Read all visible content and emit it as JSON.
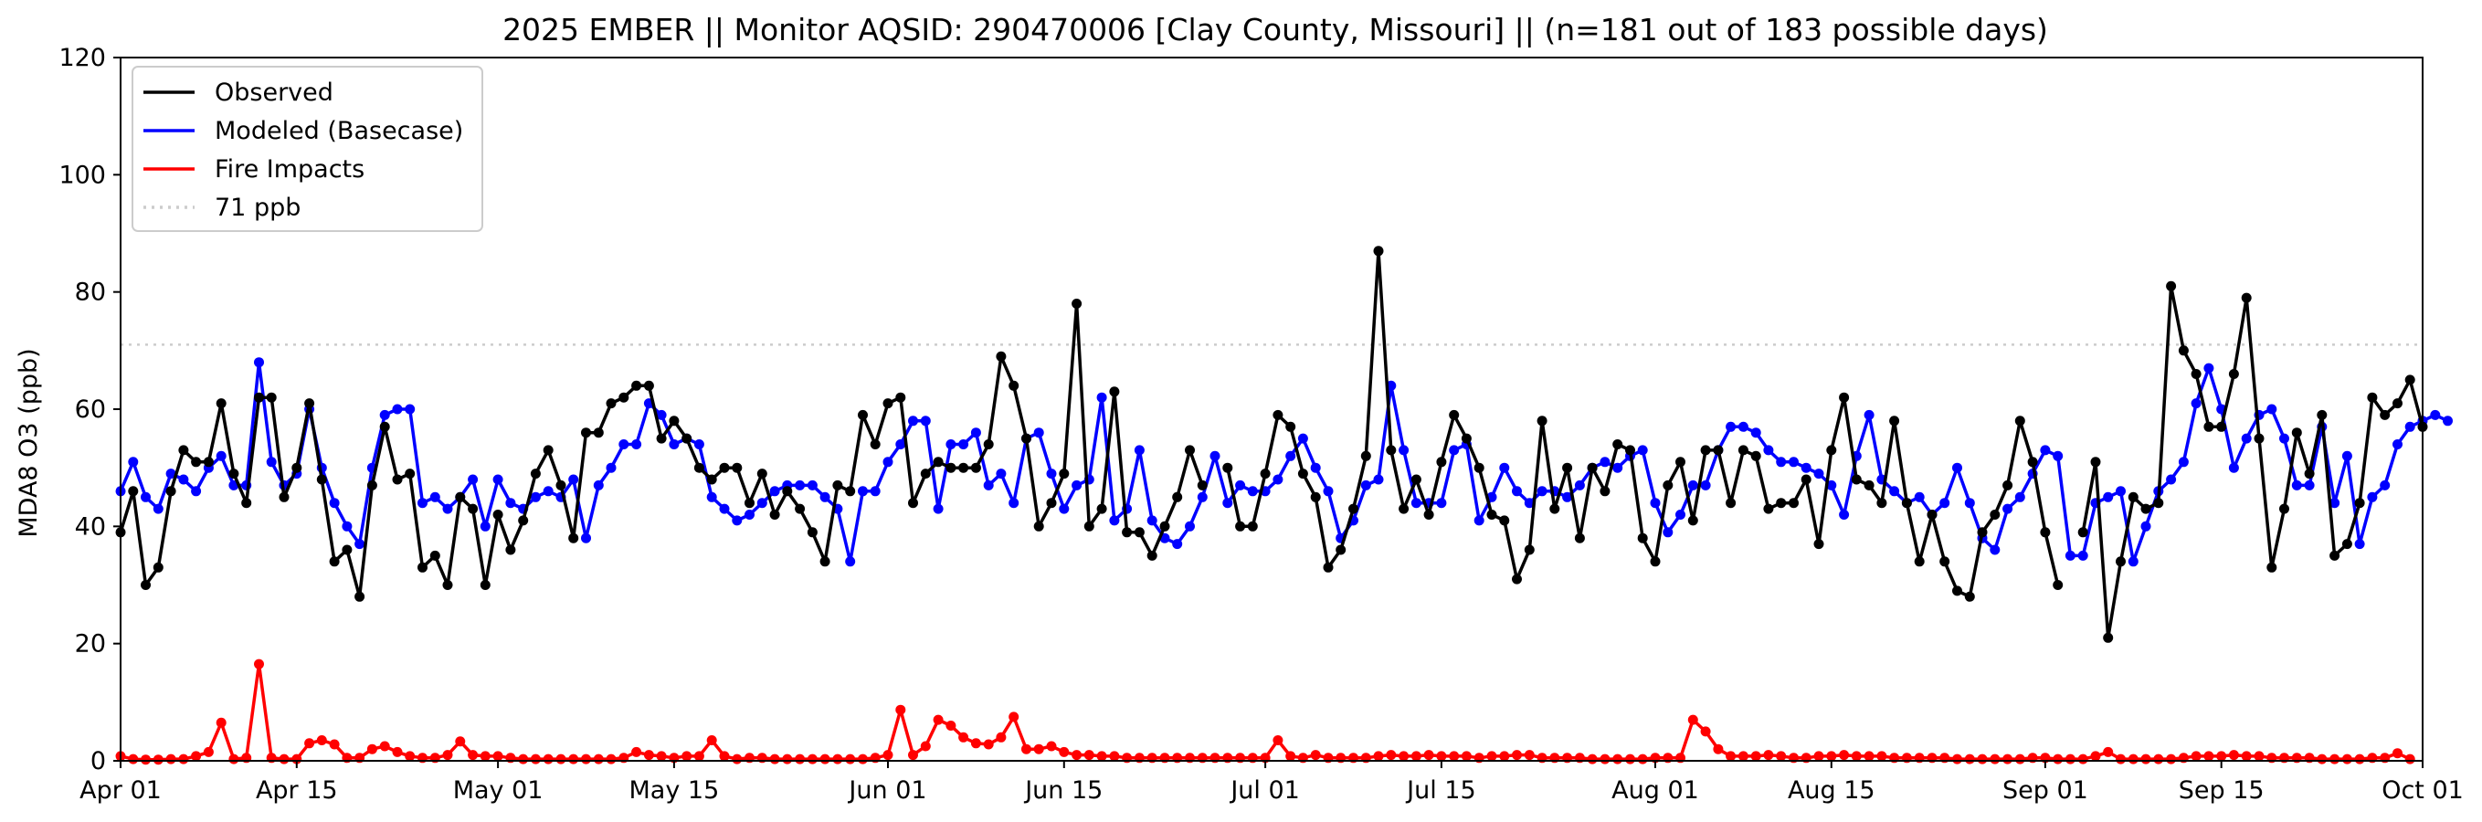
{
  "chart_data": {
    "type": "line",
    "title": "2025 EMBER || Monitor AQSID: 290470006 [Clay County, Missouri] || (n=181 out of 183 possible days)",
    "xlabel": "",
    "ylabel": "MDA8 O3 (ppb)",
    "x_start": "2025-04-01",
    "xlim": [
      "2025-04-01",
      "2025-10-01"
    ],
    "ylim": [
      0,
      120
    ],
    "y_ticks": [
      0,
      20,
      40,
      60,
      80,
      100,
      120
    ],
    "x_ticks": [
      {
        "date": "2025-04-01",
        "label": "Apr 01"
      },
      {
        "date": "2025-04-15",
        "label": "Apr 15"
      },
      {
        "date": "2025-05-01",
        "label": "May 01"
      },
      {
        "date": "2025-05-15",
        "label": "May 15"
      },
      {
        "date": "2025-06-01",
        "label": "Jun 01"
      },
      {
        "date": "2025-06-15",
        "label": "Jun 15"
      },
      {
        "date": "2025-07-01",
        "label": "Jul 01"
      },
      {
        "date": "2025-07-15",
        "label": "Jul 15"
      },
      {
        "date": "2025-08-01",
        "label": "Aug 01"
      },
      {
        "date": "2025-08-15",
        "label": "Aug 15"
      },
      {
        "date": "2025-09-01",
        "label": "Sep 01"
      },
      {
        "date": "2025-09-15",
        "label": "Sep 15"
      },
      {
        "date": "2025-10-01",
        "label": "Oct 01"
      }
    ],
    "grid": false,
    "legend_position": "upper-left",
    "threshold": {
      "value": 71,
      "label": "71 ppb",
      "color": "#cccccc"
    },
    "series": [
      {
        "name": "Observed",
        "color": "#000000",
        "values": [
          39,
          46,
          30,
          33,
          46,
          53,
          51,
          51,
          61,
          49,
          44,
          62,
          62,
          45,
          50,
          61,
          48,
          34,
          36,
          28,
          47,
          57,
          48,
          49,
          33,
          35,
          30,
          45,
          43,
          30,
          42,
          36,
          41,
          49,
          53,
          47,
          38,
          56,
          56,
          61,
          62,
          64,
          64,
          55,
          58,
          55,
          50,
          48,
          50,
          50,
          44,
          49,
          42,
          46,
          43,
          39,
          34,
          47,
          46,
          59,
          54,
          61,
          62,
          44,
          49,
          51,
          50,
          50,
          50,
          54,
          69,
          64,
          55,
          40,
          44,
          49,
          78,
          40,
          43,
          63,
          39,
          39,
          35,
          40,
          45,
          53,
          47,
          54,
          50,
          40,
          40,
          49,
          59,
          57,
          49,
          45,
          33,
          36,
          43,
          52,
          87,
          53,
          43,
          48,
          42,
          51,
          59,
          55,
          50,
          42,
          41,
          31,
          36,
          58,
          43,
          50,
          38,
          50,
          46,
          54,
          53,
          38,
          34,
          47,
          51,
          41,
          53,
          53,
          44,
          53,
          52,
          43,
          44,
          44,
          48,
          37,
          53,
          62,
          48,
          47,
          44,
          58,
          44,
          34,
          42,
          34,
          29,
          28,
          39,
          42,
          47,
          58,
          51,
          39,
          30,
          43,
          39,
          51,
          21,
          34,
          45,
          43,
          44,
          81,
          70,
          66,
          57,
          57,
          66,
          79,
          55,
          33,
          43,
          56,
          49,
          59,
          35,
          37,
          44,
          62,
          59,
          61,
          65,
          57
        ],
        "missing_days": [
          87,
          155
        ]
      },
      {
        "name": "Modeled (Basecase)",
        "color": "#0000ff",
        "values": [
          46,
          51,
          45,
          43,
          49,
          48,
          46,
          50,
          52,
          47,
          47,
          68,
          51,
          47,
          49,
          60,
          50,
          44,
          40,
          37,
          50,
          59,
          60,
          60,
          44,
          45,
          43,
          45,
          48,
          40,
          48,
          44,
          43,
          45,
          46,
          45,
          48,
          38,
          47,
          50,
          54,
          54,
          61,
          59,
          54,
          55,
          54,
          45,
          43,
          41,
          42,
          44,
          46,
          47,
          47,
          47,
          45,
          43,
          34,
          46,
          46,
          51,
          54,
          58,
          58,
          43,
          54,
          54,
          56,
          47,
          49,
          44,
          55,
          56,
          49,
          43,
          47,
          48,
          62,
          41,
          43,
          53,
          41,
          38,
          37,
          40,
          45,
          52,
          44,
          47,
          46,
          46,
          48,
          52,
          55,
          50,
          46,
          38,
          41,
          47,
          48,
          64,
          53,
          44,
          44,
          44,
          53,
          54,
          41,
          45,
          50,
          46,
          44,
          46,
          46,
          45,
          47,
          50,
          51,
          50,
          52,
          53,
          44,
          39,
          42,
          47,
          47,
          53,
          57,
          57,
          56,
          53,
          51,
          51,
          50,
          49,
          47,
          42,
          52,
          59,
          48,
          46,
          44,
          45,
          42,
          44,
          50,
          44,
          38,
          36,
          43,
          45,
          49,
          53,
          52,
          35,
          35,
          44,
          45,
          46,
          34,
          40,
          46,
          48,
          51,
          61,
          67,
          60,
          50,
          55,
          59,
          60,
          55,
          47,
          47,
          57,
          44,
          52,
          37,
          45,
          47,
          54,
          57,
          58,
          59,
          58
        ],
        "missing_days": []
      },
      {
        "name": "Fire Impacts",
        "color": "#ff0000",
        "values": [
          0.8,
          0.3,
          0.2,
          0.2,
          0.3,
          0.3,
          0.8,
          1.5,
          6.5,
          0.3,
          0.5,
          16.5,
          0.5,
          0.3,
          0.3,
          3,
          3.5,
          2.8,
          0.5,
          0.5,
          2,
          2.5,
          1.5,
          0.8,
          0.5,
          0.5,
          1,
          3.3,
          1,
          0.8,
          0.8,
          0.5,
          0.3,
          0.3,
          0.3,
          0.3,
          0.3,
          0.3,
          0.3,
          0.3,
          0.5,
          1.5,
          1,
          0.8,
          0.5,
          0.8,
          0.8,
          3.5,
          0.8,
          0.3,
          0.5,
          0.5,
          0.3,
          0.3,
          0.3,
          0.3,
          0.3,
          0.3,
          0.3,
          0.3,
          0.5,
          1,
          8.7,
          1,
          2.5,
          7,
          6,
          4,
          3,
          2.8,
          4,
          7.5,
          2,
          2,
          2.5,
          1.5,
          1,
          1,
          0.8,
          0.8,
          0.5,
          0.5,
          0.5,
          0.5,
          0.5,
          0.5,
          0.5,
          0.5,
          0.5,
          0.5,
          0.5,
          0.5,
          3.5,
          0.8,
          0.5,
          1,
          0.5,
          0.5,
          0.5,
          0.5,
          0.8,
          1,
          0.8,
          0.8,
          1,
          0.8,
          0.8,
          0.8,
          0.5,
          0.8,
          0.8,
          1,
          1,
          0.5,
          0.5,
          0.5,
          0.5,
          0.3,
          0.3,
          0.3,
          0.3,
          0.3,
          0.5,
          0.5,
          0.5,
          7,
          5,
          2,
          0.8,
          0.8,
          0.8,
          1,
          0.8,
          0.5,
          0.5,
          0.8,
          0.8,
          1,
          0.8,
          0.8,
          0.8,
          0.5,
          0.5,
          0.5,
          0.5,
          0.5,
          0.3,
          0.3,
          0.3,
          0.3,
          0.3,
          0.3,
          0.5,
          0.5,
          0.3,
          0.3,
          0.3,
          0.8,
          1.5,
          0.3,
          0.3,
          0.3,
          0.3,
          0.3,
          0.5,
          0.8,
          0.8,
          0.8,
          1,
          0.8,
          0.8,
          0.5,
          0.5,
          0.5,
          0.5,
          0.3,
          0.3,
          0.3,
          0.3,
          0.5,
          0.5,
          1.3,
          0.3
        ],
        "missing_days": []
      }
    ]
  }
}
